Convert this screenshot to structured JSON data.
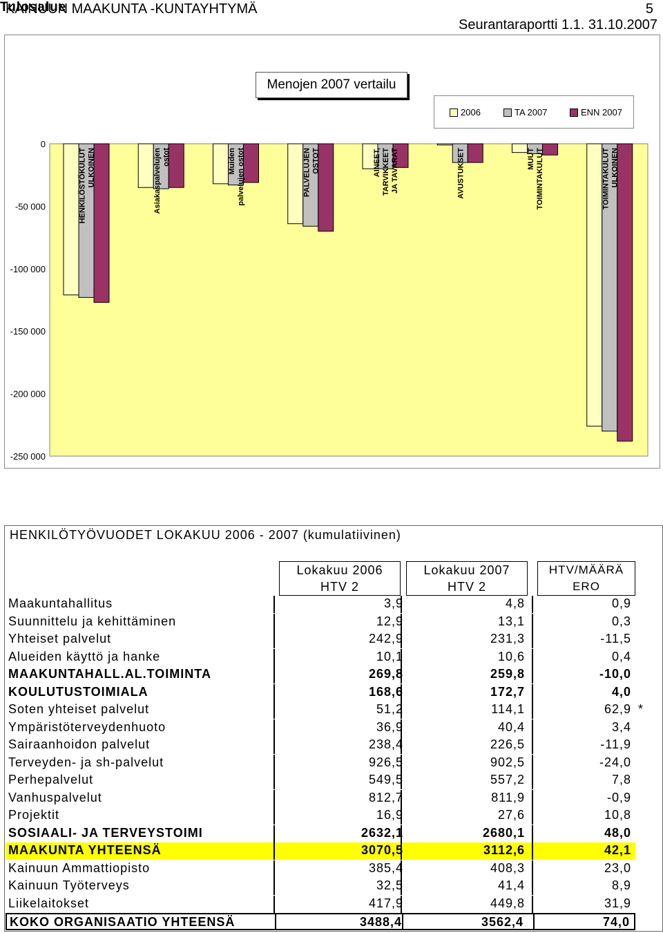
{
  "header": {
    "org": "KAINUUN MAAKUNTA -KUNTAYHTYMÄ",
    "page": "5",
    "report": "Seurantaraportti 1.1. 31.10.2007"
  },
  "chart_data": {
    "type": "bar",
    "title": "Menojen 2007 vertailu",
    "categories": [
      "HENKILÖSTÖKULUT ULKOINEN",
      "Asiakaspalvelujen ostot",
      "Muiden palvelujen ostot",
      "PALVELUJEN OSTOT",
      "AINEET, TARVIKKEET JA TAVARAT",
      "AVUSTUKSET",
      "MUUT TOIMINTAKULUT",
      "TOIMINTAKULUT ULKOINEN"
    ],
    "series": [
      {
        "name": "2006",
        "color": "#ffffc0",
        "values": [
          -121000,
          -35000,
          -32000,
          -64000,
          -20000,
          -1000,
          -7000,
          -226000
        ]
      },
      {
        "name": "TA 2007",
        "color": "#c0c0c0",
        "values": [
          -123000,
          -36000,
          -33000,
          -66000,
          -20000,
          -15000,
          -8000,
          -230000
        ]
      },
      {
        "name": "ENN 2007",
        "color": "#993366",
        "values": [
          -127000,
          -35000,
          -31000,
          -70000,
          -19000,
          -15000,
          -9000,
          -238000
        ]
      }
    ],
    "y_ticks": [
      "0",
      "-50 000",
      "-100 000",
      "-150 000",
      "-200 000",
      "-250 000"
    ],
    "ylim": [
      -260000,
      0
    ],
    "plot_bg": "#ffff99",
    "grid": false,
    "legend_position": "top-right"
  },
  "table": {
    "title": "HENKILÖTYÖVUODET LOKAKUU 2006 - 2007 (kumulatiivinen)",
    "col_tulos": "Tulosalue",
    "col1": [
      "Lokakuu 2006",
      "HTV 2"
    ],
    "col2": [
      "Lokakuu 2007",
      "HTV 2"
    ],
    "col3": [
      "HTV/MÄÄRÄ",
      "ERO"
    ],
    "rows": [
      {
        "name": "Maakuntahallitus",
        "v1": "3,9",
        "v2": "4,8",
        "v3": "0,9",
        "style": ""
      },
      {
        "name": "Suunnittelu ja kehittäminen",
        "v1": "12,9",
        "v2": "13,1",
        "v3": "0,3",
        "style": ""
      },
      {
        "name": "Yhteiset palvelut",
        "v1": "242,9",
        "v2": "231,3",
        "v3": "-11,5",
        "style": ""
      },
      {
        "name": "Alueiden käyttö ja hanke",
        "v1": "10,1",
        "v2": "10,6",
        "v3": "0,4",
        "style": ""
      },
      {
        "name": "MAAKUNTAHALL.AL.TOIMINTA",
        "v1": "269,8",
        "v2": "259,8",
        "v3": "-10,0",
        "style": "bold"
      },
      {
        "name": "KOULUTUSTOIMIALA",
        "v1": "168,6",
        "v2": "172,7",
        "v3": "4,0",
        "style": "bold"
      },
      {
        "name": "Soten yhteiset palvelut",
        "v1": "51,2",
        "v2": "114,1",
        "v3": "62,9",
        "style": "",
        "note": "*"
      },
      {
        "name": "Ympäristöterveydenhuoto",
        "v1": "36,9",
        "v2": "40,4",
        "v3": "3,4",
        "style": ""
      },
      {
        "name": "Sairaanhoidon palvelut",
        "v1": "238,4",
        "v2": "226,5",
        "v3": "-11,9",
        "style": ""
      },
      {
        "name": "Terveyden- ja sh-palvelut",
        "v1": "926,5",
        "v2": "902,5",
        "v3": "-24,0",
        "style": ""
      },
      {
        "name": "Perhepalvelut",
        "v1": "549,5",
        "v2": "557,2",
        "v3": "7,8",
        "style": ""
      },
      {
        "name": "Vanhuspalvelut",
        "v1": "812,7",
        "v2": "811,9",
        "v3": "-0,9",
        "style": ""
      },
      {
        "name": "Projektit",
        "v1": "16,9",
        "v2": "27,6",
        "v3": "10,8",
        "style": ""
      },
      {
        "name": "SOSIAALI- JA TERVEYSTOIMI",
        "v1": "2632,1",
        "v2": "2680,1",
        "v3": "48,0",
        "style": "bold"
      },
      {
        "name": "MAAKUNTA YHTEENSÄ",
        "v1": "3070,5",
        "v2": "3112,6",
        "v3": "42,1",
        "style": "bold yellow"
      },
      {
        "name": "Kainuun Ammattiopisto",
        "v1": "385,4",
        "v2": "408,3",
        "v3": "23,0",
        "style": ""
      },
      {
        "name": "Kainuun Työterveys",
        "v1": "32,5",
        "v2": "41,4",
        "v3": "8,9",
        "style": ""
      },
      {
        "name": "Liikelaitokset",
        "v1": "417,9",
        "v2": "449,8",
        "v3": "31,9",
        "style": ""
      },
      {
        "name": "KOKO ORGANISAATIO YHTEENSÄ",
        "v1": "3488,4",
        "v2": "3562,4",
        "v3": "74,0",
        "style": "bold boxed"
      }
    ]
  }
}
